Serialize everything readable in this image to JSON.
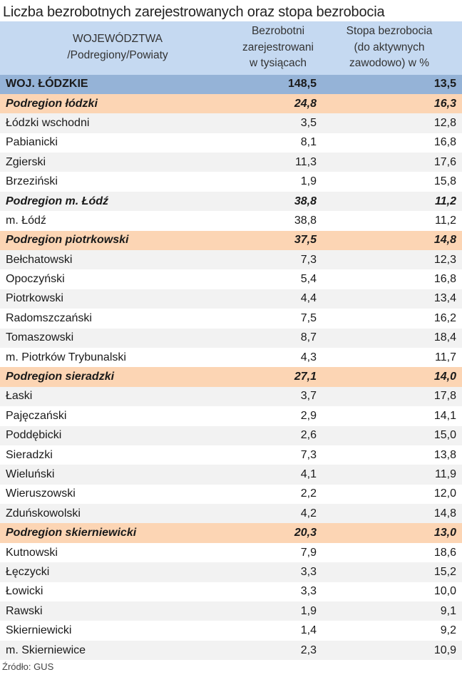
{
  "title": "Liczba bezrobotnych zarejestrowanych oraz stopa bezrobocia",
  "table": {
    "headers": {
      "col1_line1": "WOJEWÓDZTWA",
      "col1_line2": "/Podregiony/Powiaty",
      "col2_line1": "Bezrobotni",
      "col2_line2": "zarejestrowani",
      "col2_line3": "w tysiącach",
      "col3_line1": "Stopa bezrobocia",
      "col3_line2": "(do aktywnych",
      "col3_line3": "zawodowo) w %"
    },
    "rows": [
      {
        "name": "WOJ. ŁÓDZKIE",
        "unemployed": "148,5",
        "rate": "13,5"
      },
      {
        "name": "Podregion łódzki",
        "unemployed": "24,8",
        "rate": "16,3"
      },
      {
        "name": "Łódzki wschodni",
        "unemployed": "3,5",
        "rate": "12,8"
      },
      {
        "name": "Pabianicki",
        "unemployed": "8,1",
        "rate": "16,8"
      },
      {
        "name": "Zgierski",
        "unemployed": "11,3",
        "rate": "17,6"
      },
      {
        "name": "Brzeziński",
        "unemployed": "1,9",
        "rate": "15,8"
      },
      {
        "name": "Podregion m. Łódź",
        "unemployed": "38,8",
        "rate": "11,2"
      },
      {
        "name": "m. Łódź",
        "unemployed": "38,8",
        "rate": "11,2"
      },
      {
        "name": "Podregion piotrkowski",
        "unemployed": "37,5",
        "rate": "14,8"
      },
      {
        "name": "Bełchatowski",
        "unemployed": "7,3",
        "rate": "12,3"
      },
      {
        "name": "Opoczyński",
        "unemployed": "5,4",
        "rate": "16,8"
      },
      {
        "name": "Piotrkowski",
        "unemployed": "4,4",
        "rate": "13,4"
      },
      {
        "name": "Radomszczański",
        "unemployed": "7,5",
        "rate": "16,2"
      },
      {
        "name": "Tomaszowski",
        "unemployed": "8,7",
        "rate": "18,4"
      },
      {
        "name": "m. Piotrków Trybunalski",
        "unemployed": "4,3",
        "rate": "11,7"
      },
      {
        "name": "Podregion sieradzki",
        "unemployed": "27,1",
        "rate": "14,0"
      },
      {
        "name": "Łaski",
        "unemployed": "3,7",
        "rate": "17,8"
      },
      {
        "name": "Pajęczański",
        "unemployed": "2,9",
        "rate": "14,1"
      },
      {
        "name": "Poddębicki",
        "unemployed": "2,6",
        "rate": "15,0"
      },
      {
        "name": "Sieradzki",
        "unemployed": "7,3",
        "rate": "13,8"
      },
      {
        "name": "Wieluński",
        "unemployed": "4,1",
        "rate": "11,9"
      },
      {
        "name": "Wieruszowski",
        "unemployed": "2,2",
        "rate": "12,0"
      },
      {
        "name": "Zduńskowolski",
        "unemployed": "4,2",
        "rate": "14,8"
      },
      {
        "name": "Podregion skierniewicki",
        "unemployed": "20,3",
        "rate": "13,0"
      },
      {
        "name": "Kutnowski",
        "unemployed": "7,9",
        "rate": "18,6"
      },
      {
        "name": "Łęczycki",
        "unemployed": "3,3",
        "rate": "15,2"
      },
      {
        "name": "Łowicki",
        "unemployed": "3,3",
        "rate": "10,0"
      },
      {
        "name": "Rawski",
        "unemployed": "1,9",
        "rate": "9,1"
      },
      {
        "name": "Skierniewicki",
        "unemployed": "1,4",
        "rate": "9,2"
      },
      {
        "name": "m. Skierniewice",
        "unemployed": "2,3",
        "rate": "10,9"
      }
    ]
  },
  "source": "Źródło: GUS",
  "colors": {
    "header_bg": "#c5d9f1",
    "total_bg": "#95b3d7",
    "subregion_bg": "#fcd5b4",
    "alt_row_bg": "#f2f2f2"
  }
}
